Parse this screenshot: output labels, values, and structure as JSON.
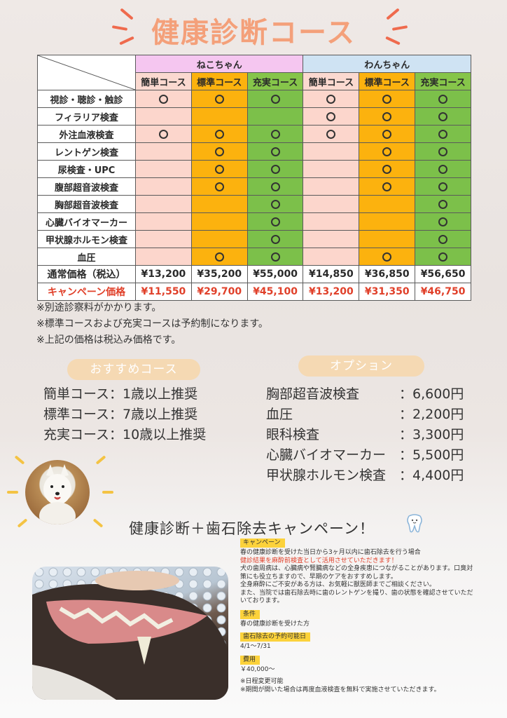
{
  "title": "健康診断コース",
  "table": {
    "groups": [
      "ねこちゃん",
      "わんちゃん"
    ],
    "courses": [
      "簡単コース",
      "標準コース",
      "充実コース",
      "簡単コース",
      "標準コース",
      "充実コース"
    ],
    "rows": [
      {
        "label": "視診・聴診・触診",
        "marks": [
          1,
          1,
          1,
          1,
          1,
          1
        ]
      },
      {
        "label": "フィラリア検査",
        "marks": [
          0,
          0,
          0,
          1,
          1,
          1
        ]
      },
      {
        "label": "外注血液検査",
        "marks": [
          1,
          1,
          1,
          1,
          1,
          1
        ]
      },
      {
        "label": "レントゲン検査",
        "marks": [
          0,
          1,
          1,
          0,
          1,
          1
        ]
      },
      {
        "label": "尿検査・UPC",
        "marks": [
          0,
          1,
          1,
          0,
          1,
          1
        ]
      },
      {
        "label": "腹部超音波検査",
        "marks": [
          0,
          1,
          1,
          0,
          1,
          1
        ]
      },
      {
        "label": "胸部超音波検査",
        "marks": [
          0,
          0,
          1,
          0,
          0,
          1
        ]
      },
      {
        "label": "心臓バイオマーカー",
        "marks": [
          0,
          0,
          1,
          0,
          0,
          1
        ]
      },
      {
        "label": "甲状腺ホルモン検査",
        "marks": [
          0,
          0,
          1,
          0,
          0,
          1
        ]
      },
      {
        "label": "血圧",
        "marks": [
          0,
          1,
          1,
          0,
          1,
          1
        ]
      }
    ],
    "price_label": "通常価格（税込）",
    "prices": [
      "¥13,200",
      "¥35,200",
      "¥55,000",
      "¥14,850",
      "¥36,850",
      "¥56,650"
    ],
    "campaign_label": "キャンペーン価格",
    "campaign_prices": [
      "¥11,550",
      "¥29,700",
      "¥45,100",
      "¥13,200",
      "¥31,350",
      "¥46,750"
    ]
  },
  "notes": [
    "※別途診察料がかかります。",
    "※標準コースおよび充実コースは予約制になります。",
    "※上記の価格は税込み価格です。"
  ],
  "recommend": {
    "heading": "おすすめコース",
    "items": [
      "簡単コース：1歳以上推奨",
      "標準コース：7歳以上推奨",
      "充実コース：10歳以上推奨"
    ]
  },
  "options": {
    "heading": "オプション",
    "items": [
      {
        "name": "胸部超音波検査",
        "price": "：6,600円"
      },
      {
        "name": "血圧",
        "price": "：2,200円"
      },
      {
        "name": "眼科検査",
        "price": "：3,300円"
      },
      {
        "name": "心臓バイオマーカー",
        "price": "：5,500円"
      },
      {
        "name": "甲状腺ホルモン検査",
        "price": "：4,400円"
      }
    ]
  },
  "campaign": {
    "title": "健康診断＋歯石除去キャンペーン！",
    "tag1": "キャンペーン",
    "line1": "春の健康診断を受けた当日から3ヶ月以内に歯石除去を行う場合",
    "line2_red": "健診結果を麻酔前検査として活用させていただきます！",
    "line3": "犬の歯周病は、心臓病や腎臓病などの全身疾患につながることがあります。口臭対策にも役立ちますので、早期のケアをおすすめします。",
    "line4": "全身麻酔にご不安がある方は、お気軽に獣医師までご相談ください。",
    "line5": "また、当院では歯石除去時に歯のレントゲンを撮り、歯の状態を確認させていただいております。",
    "tag2": "条件",
    "cond": "春の健康診断を受けた方",
    "tag3": "歯石除去の予約可能日",
    "dates": "4/1〜7/31",
    "tag4": "費用",
    "cost": "￥40,000〜",
    "foot1": "※日程変更可能",
    "foot2": "※期間が開いた場合は再度血液検査を無料で実施させていただきます。"
  }
}
